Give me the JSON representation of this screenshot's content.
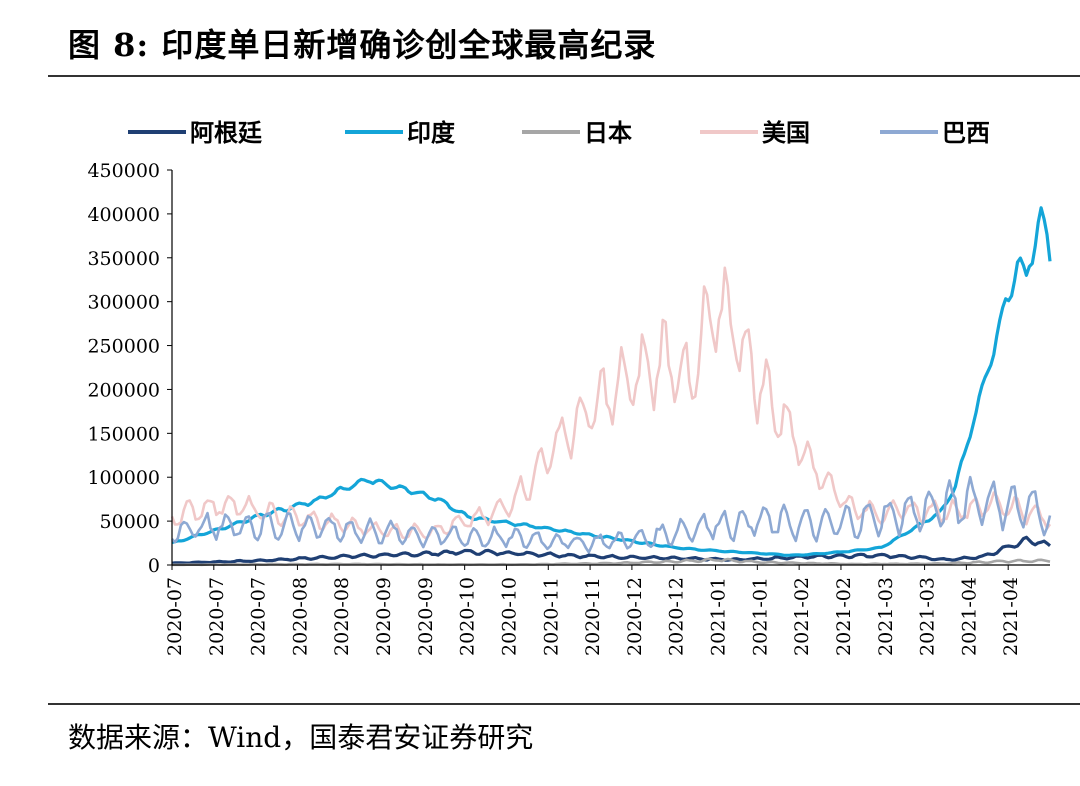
{
  "figure": {
    "title": "图 8:  印度单日新增确诊创全球最高纪录",
    "source": "数据来源：Wind，国泰君安证券研究"
  },
  "chart_data": {
    "type": "line",
    "title": "印度单日新增确诊创全球最高纪录",
    "xlabel": "",
    "ylabel": "",
    "ylim": [
      0,
      450000
    ],
    "yticks": [
      0,
      50000,
      100000,
      150000,
      200000,
      250000,
      300000,
      350000,
      400000,
      450000
    ],
    "ytick_labels": [
      "0",
      "50000",
      "100000",
      "150000",
      "200000",
      "250000",
      "300000",
      "350000",
      "400000",
      "450000"
    ],
    "xlim": [
      0,
      297
    ],
    "x_tick_labels": [
      "2020-07",
      "2020-07",
      "2020-07",
      "2020-08",
      "2020-08",
      "2020-09",
      "2020-09",
      "2020-10",
      "2020-10",
      "2020-11",
      "2020-11",
      "2020-12",
      "2020-12",
      "2021-01",
      "2021-01",
      "2021-02",
      "2021-02",
      "2021-03",
      "2021-03",
      "2021-04",
      "2021-04"
    ],
    "legend_position": "top",
    "grid": false,
    "series": [
      {
        "name": "阿根廷",
        "color": "#1f3f73",
        "x": [
          0,
          30,
          60,
          80,
          100,
          120,
          140,
          165,
          190,
          220,
          240,
          255,
          262,
          266,
          270,
          275,
          280,
          285,
          289,
          293,
          297
        ],
        "values": [
          2000,
          5000,
          10000,
          12000,
          15000,
          13000,
          10000,
          8000,
          6000,
          10000,
          11000,
          8000,
          6000,
          7000,
          8000,
          10000,
          17000,
          23000,
          28000,
          27000,
          20000
        ]
      },
      {
        "name": "印度",
        "color": "#14a5d8",
        "x": [
          0,
          10,
          20,
          30,
          40,
          50,
          60,
          66,
          70,
          80,
          90,
          100,
          110,
          120,
          130,
          140,
          150,
          160,
          170,
          180,
          190,
          200,
          210,
          220,
          230,
          240,
          250,
          255,
          260,
          265,
          270,
          275,
          280,
          283,
          286,
          289,
          292,
          294,
          297
        ],
        "values": [
          25000,
          35000,
          45000,
          57000,
          65000,
          75000,
          90000,
          97000,
          95000,
          85000,
          75000,
          55000,
          50000,
          45000,
          40000,
          35000,
          30000,
          25000,
          20000,
          17000,
          15000,
          13000,
          11000,
          13000,
          16000,
          20000,
          40000,
          50000,
          60000,
          90000,
          150000,
          210000,
          270000,
          310000,
          340000,
          330000,
          370000,
          400000,
          355000
        ]
      },
      {
        "name": "日本",
        "color": "#a6a6a6",
        "x": [
          0,
          30,
          60,
          90,
          120,
          150,
          170,
          185,
          200,
          230,
          260,
          280,
          297
        ],
        "values": [
          200,
          800,
          1000,
          600,
          700,
          2000,
          4000,
          6000,
          3000,
          1000,
          1500,
          4000,
          5000
        ]
      },
      {
        "name": "美国",
        "color": "#f0c8c8",
        "x": [
          0,
          10,
          20,
          30,
          40,
          50,
          60,
          70,
          80,
          90,
          100,
          110,
          120,
          130,
          140,
          150,
          160,
          170,
          175,
          180,
          185,
          190,
          195,
          200,
          210,
          220,
          230,
          240,
          250,
          260,
          270,
          280,
          290,
          297
        ],
        "values": [
          55000,
          65000,
          70000,
          60000,
          55000,
          50000,
          45000,
          40000,
          38000,
          40000,
          50000,
          60000,
          90000,
          140000,
          170000,
          200000,
          220000,
          240000,
          200000,
          260000,
          290000,
          280000,
          230000,
          200000,
          150000,
          100000,
          65000,
          60000,
          62000,
          60000,
          65000,
          70000,
          60000,
          50000
        ]
      },
      {
        "name": "巴西",
        "color": "#8ea9d3",
        "x": [
          0,
          20,
          40,
          60,
          80,
          100,
          120,
          140,
          160,
          180,
          200,
          220,
          240,
          260,
          270,
          280,
          290,
          297
        ],
        "values": [
          40000,
          45000,
          45000,
          40000,
          35000,
          32000,
          30000,
          25000,
          30000,
          45000,
          50000,
          45000,
          55000,
          65000,
          75000,
          70000,
          65000,
          55000
        ]
      }
    ]
  }
}
